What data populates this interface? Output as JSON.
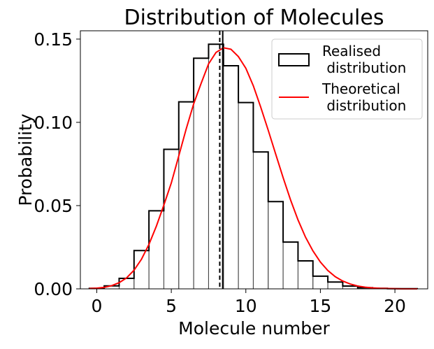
{
  "chart_data": {
    "type": "bar",
    "title": "Distribution of Molecules",
    "xlabel": "Molecule number",
    "ylabel": "Probability",
    "xlim": [
      -1.1,
      22.2
    ],
    "ylim": [
      0,
      0.155
    ],
    "xticks": [
      0,
      5,
      10,
      15,
      20
    ],
    "xtick_labels": [
      "0",
      "5",
      "10",
      "15",
      "20"
    ],
    "yticks": [
      0.0,
      0.05,
      0.1,
      0.15
    ],
    "ytick_labels": [
      "0.00",
      "0.05",
      "0.10",
      "0.15"
    ],
    "grid": false,
    "legend_position": "top-right",
    "series": [
      {
        "name": "Realised\n distribution",
        "type": "histogram-step",
        "color": "#000000",
        "bin_width": 1,
        "x": [
          0,
          1,
          2,
          3,
          4,
          5,
          6,
          7,
          8,
          9,
          10,
          11,
          12,
          13,
          14,
          15,
          16,
          17,
          18,
          19,
          20,
          21
        ],
        "values": [
          0.0003,
          0.0018,
          0.0063,
          0.023,
          0.0469,
          0.0838,
          0.1123,
          0.1385,
          0.1469,
          0.134,
          0.1119,
          0.0822,
          0.0524,
          0.0281,
          0.0168,
          0.0076,
          0.0041,
          0.0017,
          0.0007,
          0.0003,
          0.0001,
          0.0001
        ]
      },
      {
        "name": "Theoretical\n distribution",
        "type": "line",
        "color": "#ff0000",
        "x": [
          -0.5,
          0,
          0.5,
          1,
          1.5,
          2,
          2.5,
          3,
          3.5,
          4,
          4.5,
          5,
          5.5,
          6,
          6.5,
          7,
          7.5,
          8,
          8.5,
          9,
          9.5,
          10,
          10.5,
          11,
          11.5,
          12,
          12.5,
          13,
          13.5,
          14,
          14.5,
          15,
          15.5,
          16,
          16.5,
          17,
          17.5,
          18,
          18.5,
          19,
          19.5,
          20,
          20.5,
          21,
          21.5
        ],
        "values": [
          0.0002,
          0.0004,
          0.0009,
          0.0019,
          0.0037,
          0.0066,
          0.0112,
          0.0178,
          0.0267,
          0.0377,
          0.0503,
          0.0636,
          0.0798,
          0.0961,
          0.1111,
          0.1234,
          0.1351,
          0.142,
          0.1448,
          0.1439,
          0.1395,
          0.1325,
          0.122,
          0.1091,
          0.0953,
          0.081,
          0.0668,
          0.0534,
          0.0414,
          0.0311,
          0.0228,
          0.0161,
          0.011,
          0.0073,
          0.0047,
          0.0029,
          0.0017,
          0.001,
          0.0006,
          0.0003,
          0.0002,
          0.0001,
          0.0,
          0.0,
          0.0
        ]
      }
    ],
    "reference_lines": [
      {
        "type": "vertical",
        "x": 8.25,
        "color": "#000000",
        "style": "dashed"
      },
      {
        "type": "vertical",
        "x": 8.45,
        "color": "#000000",
        "style": "solid"
      }
    ]
  }
}
